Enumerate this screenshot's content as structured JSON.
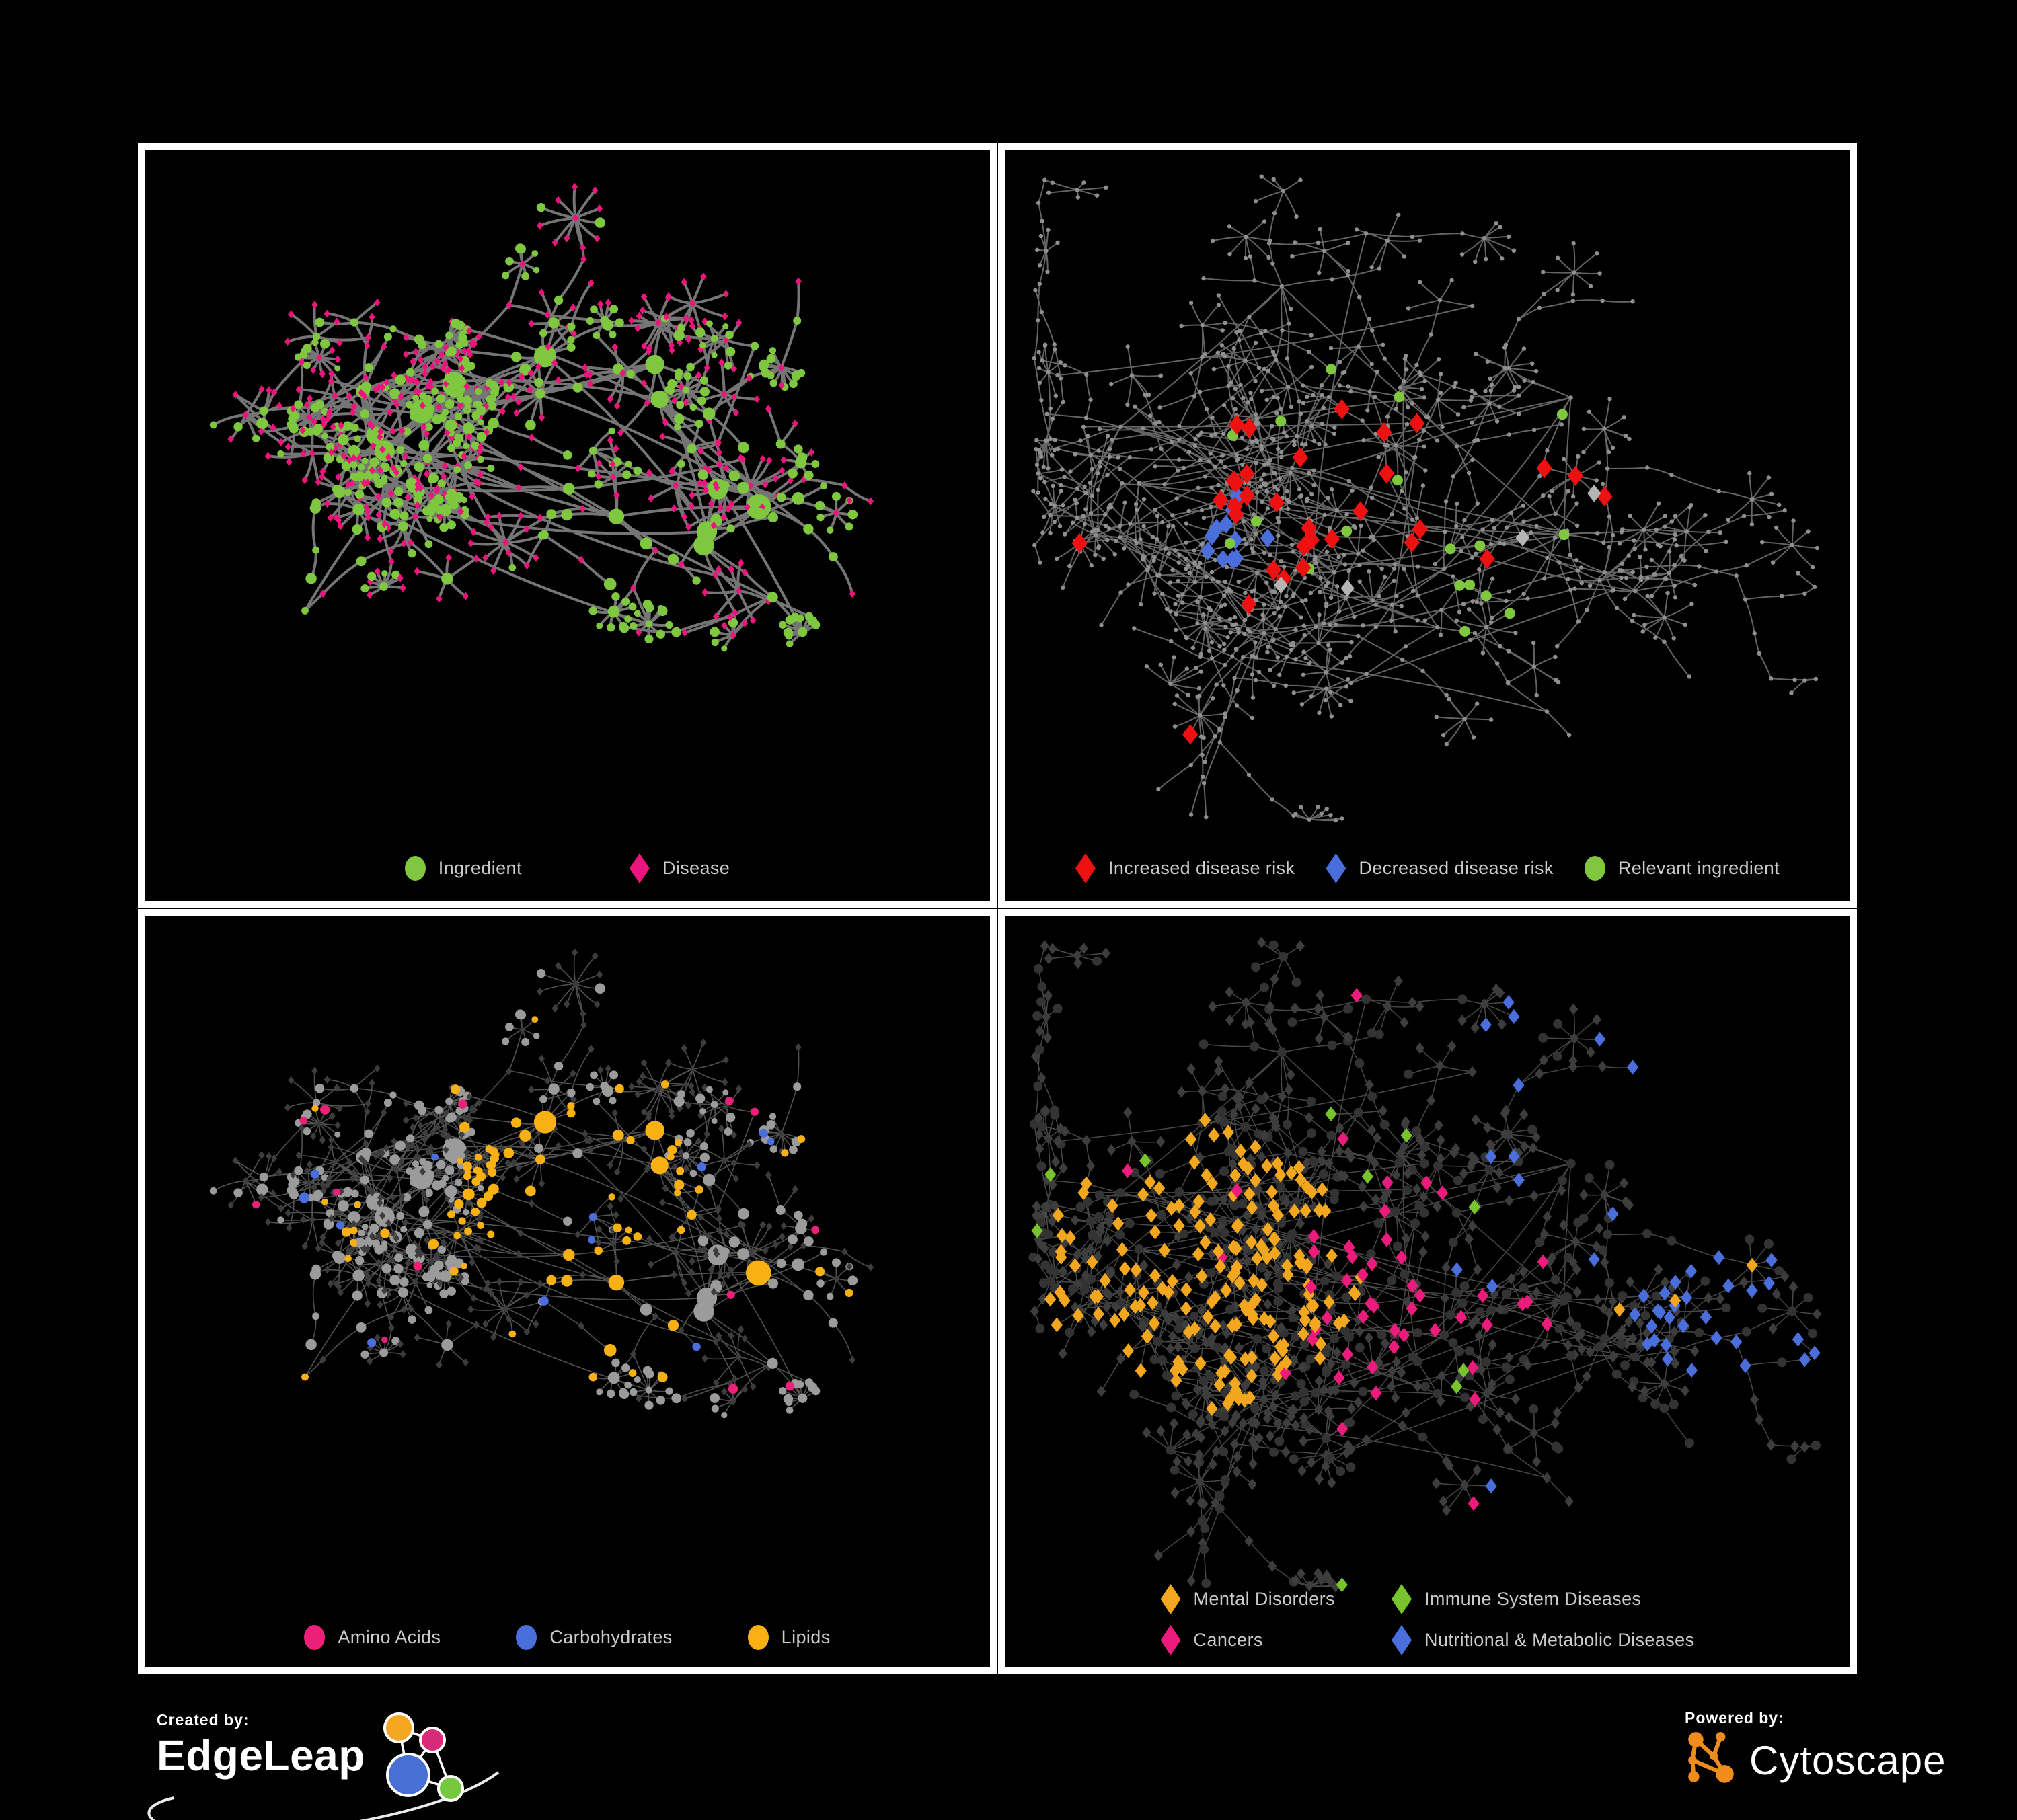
{
  "panels": [
    {
      "name": "ingredient-disease-network",
      "legend": [
        {
          "label": "Ingredient",
          "shape": "circle",
          "color": "#7ec73e"
        },
        {
          "label": "Disease",
          "shape": "diamond",
          "color": "#ec157d"
        }
      ]
    },
    {
      "name": "disease-risk-network",
      "legend": [
        {
          "label": "Increased disease risk",
          "shape": "diamond",
          "color": "#ed1111"
        },
        {
          "label": "Decreased disease risk",
          "shape": "diamond",
          "color": "#4a6edb"
        },
        {
          "label": "Relevant ingredient",
          "shape": "circle",
          "color": "#7ec73e"
        }
      ]
    },
    {
      "name": "nutrient-class-network",
      "legend": [
        {
          "label": "Amino Acids",
          "shape": "circle",
          "color": "#ed2079"
        },
        {
          "label": "Carbohydrates",
          "shape": "circle",
          "color": "#4a6edb"
        },
        {
          "label": "Lipids",
          "shape": "circle",
          "color": "#f9b013"
        }
      ]
    },
    {
      "name": "disease-class-network",
      "legend": [
        {
          "label": "Mental Disorders",
          "shape": "diamond",
          "color": "#f3a71e"
        },
        {
          "label": "Immune System Diseases",
          "shape": "diamond",
          "color": "#78c42c"
        },
        {
          "label": "Cancers",
          "shape": "diamond",
          "color": "#ed1b7c"
        },
        {
          "label": "Nutritional & Metabolic Diseases",
          "shape": "diamond",
          "color": "#4a6edb"
        }
      ]
    }
  ],
  "footer": {
    "created_by": "Created by:",
    "created_brand": "EdgeLeap",
    "powered_by": "Powered by:",
    "powered_brand": "Cytoscape"
  },
  "colors": {
    "background": "#000000",
    "panel_border": "#ffffff",
    "legend_text": "#cbcbcb",
    "ingredient_green": "#7ec73e",
    "disease_pink": "#ec157d",
    "risk_red": "#ed1111",
    "risk_blue": "#4a6edb",
    "neutral_gray": "#b5b5b5",
    "amino_pink": "#ed2079",
    "carb_blue": "#4a6edb",
    "lipid_orange": "#f9b013",
    "mental_orange": "#f3a71e",
    "immune_green": "#78c42c",
    "cancer_pink": "#ed1b7c",
    "metabolic_blue": "#4a6edb",
    "tiny_node_gray": "#8f8f8f",
    "muted_diamond": "#3d3d3d",
    "muted_circle": "#333333",
    "panel3_node_gray": "#9b9b9b",
    "edge_left": "#7b7b7b",
    "edge_right": "#6f6f6f",
    "edge_muted_left": "#949494",
    "edge_muted_right": "#8f8f8f",
    "edgeleap_orange": "#f5a623",
    "edgeleap_pink": "#d62b77",
    "edgeleap_blue": "#4a6fd4",
    "edgeleap_green": "#76c93e",
    "cytoscape_orange": "#ef8d1c"
  }
}
